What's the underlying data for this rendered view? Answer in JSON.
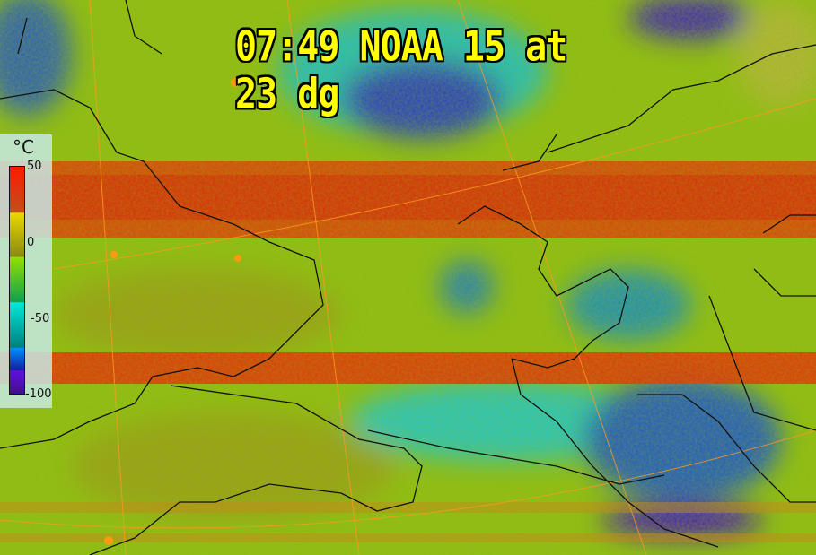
{
  "title": "07:49 NOAA 15 at 23 dg",
  "legend": {
    "unit": "°C",
    "ticks": [
      "50",
      "0",
      "-50",
      "-100"
    ],
    "range": [
      -100,
      50
    ],
    "colors": [
      "#ff1a00",
      "#e8d800",
      "#90e000",
      "#00e8d8",
      "#0090ff",
      "#6010e0"
    ]
  },
  "colors": {
    "band_hot": "#e02a10",
    "land": "#8fbf1a",
    "cold": "#1e4fd0",
    "title": "#ffff00"
  }
}
